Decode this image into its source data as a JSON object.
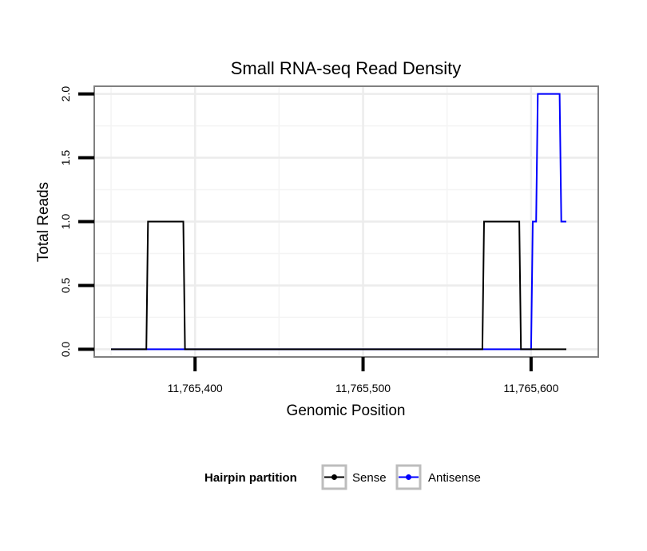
{
  "chart_data": {
    "type": "line",
    "title": "Small RNA-seq Read Density",
    "xlabel": "Genomic Position",
    "ylabel": "Total Reads",
    "xlim": [
      11765340,
      11765640
    ],
    "ylim": [
      -0.06,
      2.06
    ],
    "x_ticks": [
      11765400,
      11765500,
      11765600
    ],
    "x_tick_labels": [
      "11,765,400",
      "11,765,500",
      "11,765,600"
    ],
    "y_ticks": [
      0,
      0.5,
      1,
      1.5,
      2
    ],
    "y_tick_labels": [
      "0.0",
      "0.5",
      "1.0",
      "1.5",
      "2.0"
    ],
    "grid": true,
    "legend": {
      "title": "Hairpin partition",
      "position": "bottom",
      "entries": [
        "Sense",
        "Antisense"
      ]
    },
    "series": [
      {
        "name": "Sense",
        "color": "#000000",
        "x": [
          11765350,
          11765371,
          11765372,
          11765393,
          11765394,
          11765571,
          11765572,
          11765593,
          11765594,
          11765621
        ],
        "y": [
          0,
          0,
          1,
          1,
          0,
          0,
          1,
          1,
          0,
          0
        ]
      },
      {
        "name": "Antisense",
        "color": "#0000ff",
        "x": [
          11765350,
          11765600,
          11765601,
          11765603,
          11765604,
          11765617,
          11765618,
          11765621
        ],
        "y": [
          0,
          0,
          1,
          1,
          2,
          2,
          1,
          1
        ]
      }
    ]
  }
}
